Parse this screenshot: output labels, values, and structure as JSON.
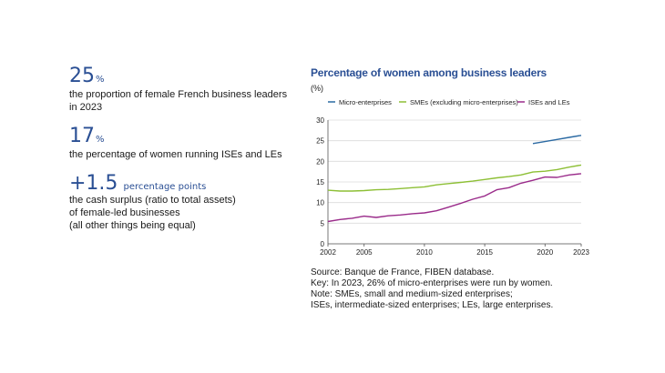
{
  "kpis": [
    {
      "number": "25",
      "unit": "%",
      "description": "the proportion of female French business leaders in 2023"
    },
    {
      "number": "17",
      "unit": "%",
      "description": "the percentage of women running ISEs and LEs"
    },
    {
      "number": "+1.5",
      "unit": "percentage points",
      "description": "the cash surplus (ratio to total assets)\nof female-led businesses\n(all other things being equal)"
    }
  ],
  "notes": [
    "Source: Banque de France, FIBEN database.",
    "Key: In 2023, 26% of micro-enterprises were run by women.",
    "Note: SMEs, small and medium-sized enterprises;",
    "ISEs, intermediate-sized enterprises; LEs, large enterprises."
  ],
  "chart_data": {
    "type": "line",
    "title": "Percentage of women among business leaders",
    "ylabel": "(%)",
    "xlabel": "",
    "xlim": [
      2002,
      2023
    ],
    "ylim": [
      0,
      30
    ],
    "yticks": [
      0,
      5,
      10,
      15,
      20,
      25,
      30
    ],
    "xticks": [
      2002,
      2005,
      2010,
      2015,
      2020,
      2023
    ],
    "grid": true,
    "legend_position": "top",
    "series": [
      {
        "name": "Micro-enterprises",
        "color": "#2b6aa3",
        "x": [
          2019,
          2020,
          2021,
          2022,
          2023
        ],
        "y": [
          24.3,
          24.8,
          25.3,
          25.8,
          26.3
        ]
      },
      {
        "name": "SMEs (excluding micro-enterprises)",
        "color": "#8dbf35",
        "x": [
          2002,
          2003,
          2004,
          2005,
          2006,
          2007,
          2008,
          2009,
          2010,
          2011,
          2012,
          2013,
          2014,
          2015,
          2016,
          2017,
          2018,
          2019,
          2020,
          2021,
          2022,
          2023
        ],
        "y": [
          13.0,
          12.8,
          12.8,
          12.9,
          13.1,
          13.2,
          13.4,
          13.6,
          13.8,
          14.3,
          14.6,
          14.9,
          15.2,
          15.6,
          16.0,
          16.3,
          16.7,
          17.4,
          17.6,
          18.0,
          18.6,
          19.1
        ]
      },
      {
        "name": "ISEs and LEs",
        "color": "#9a2b8a",
        "x": [
          2002,
          2003,
          2004,
          2005,
          2006,
          2007,
          2008,
          2009,
          2010,
          2011,
          2012,
          2013,
          2014,
          2015,
          2016,
          2017,
          2018,
          2019,
          2020,
          2021,
          2022,
          2023
        ],
        "y": [
          5.4,
          5.9,
          6.2,
          6.7,
          6.4,
          6.8,
          7.0,
          7.3,
          7.5,
          8.0,
          8.9,
          9.8,
          10.8,
          11.6,
          13.1,
          13.6,
          14.7,
          15.4,
          16.2,
          16.1,
          16.7,
          17.0
        ]
      }
    ]
  }
}
